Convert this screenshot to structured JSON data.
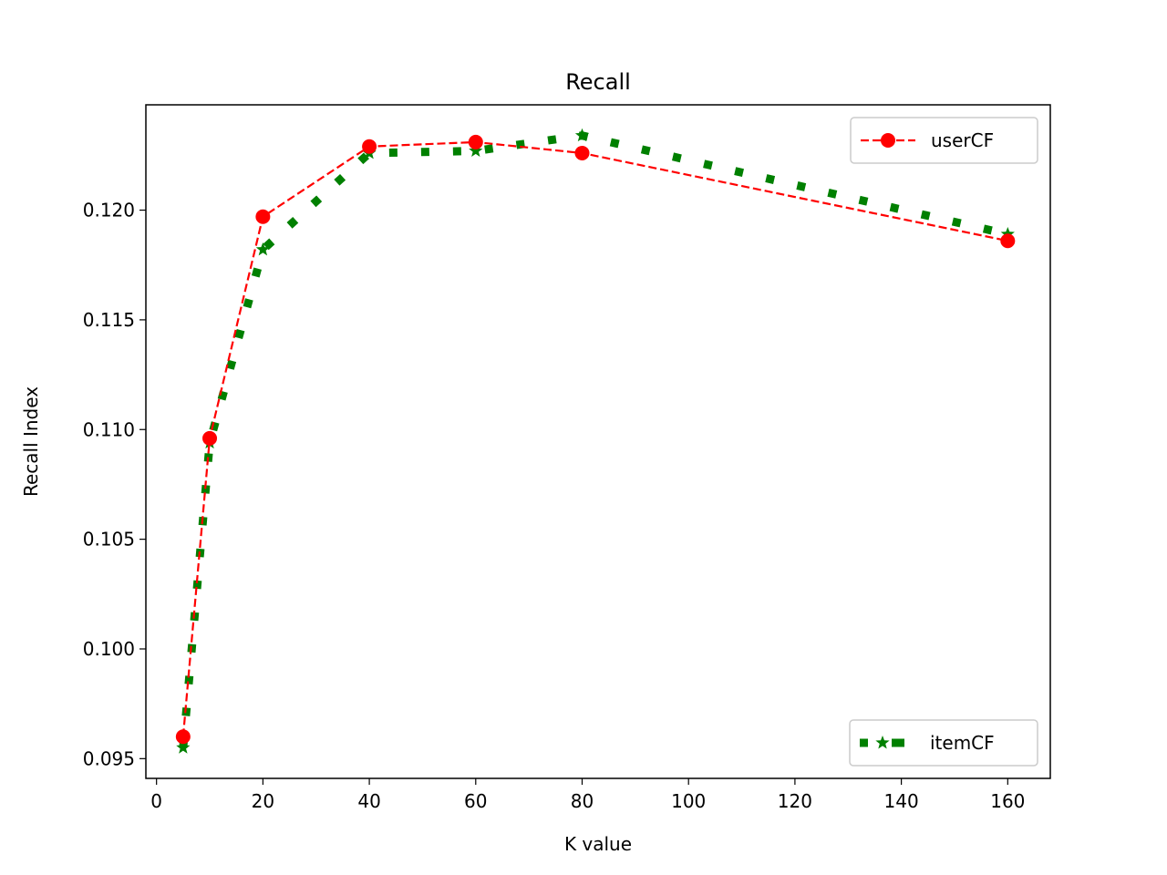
{
  "chart_data": {
    "type": "line",
    "title": "Recall",
    "xlabel": "K value",
    "ylabel": "Recall Index",
    "xlim": [
      -2,
      168
    ],
    "ylim": [
      0.0941,
      0.1248
    ],
    "xticks": [
      0,
      20,
      40,
      60,
      80,
      100,
      120,
      140,
      160
    ],
    "xtick_labels": [
      "0",
      "20",
      "40",
      "60",
      "80",
      "100",
      "120",
      "140",
      "160"
    ],
    "yticks": [
      0.095,
      0.1,
      0.105,
      0.11,
      0.115,
      0.12
    ],
    "ytick_labels": [
      "0.095",
      "0.100",
      "0.105",
      "0.110",
      "0.115",
      "0.120"
    ],
    "grid": false,
    "series": [
      {
        "name": "userCF",
        "x": [
          5,
          10,
          20,
          40,
          60,
          80,
          160
        ],
        "y": [
          0.096,
          0.1096,
          0.1197,
          0.1229,
          0.1231,
          0.1226,
          0.1186
        ],
        "color": "#ff0000",
        "linestyle": "dashed",
        "marker": "circle",
        "legend_position": "top-right"
      },
      {
        "name": "itemCF",
        "x": [
          5,
          10,
          20,
          40,
          60,
          80,
          160
        ],
        "y": [
          0.0955,
          0.1094,
          0.1182,
          0.1226,
          0.1227,
          0.1234,
          0.1189
        ],
        "color": "#008000",
        "linestyle": "dotted-square",
        "marker": "star",
        "legend_position": "bottom-right"
      }
    ]
  }
}
